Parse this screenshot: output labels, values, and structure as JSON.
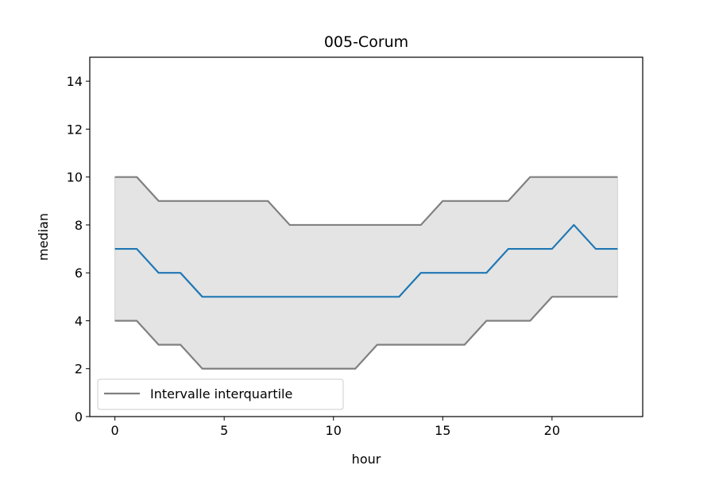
{
  "chart_data": {
    "type": "line",
    "title": "005-Corum",
    "xlabel": "hour",
    "ylabel": "median",
    "xlim": [
      -1.15,
      24.15
    ],
    "ylim": [
      0,
      15
    ],
    "xticks": [
      0,
      5,
      10,
      15,
      20
    ],
    "yticks": [
      0,
      2,
      4,
      6,
      8,
      10,
      12,
      14
    ],
    "grid": false,
    "legend_position": "lower left",
    "x": [
      0,
      1,
      2,
      3,
      4,
      5,
      6,
      7,
      8,
      9,
      10,
      11,
      12,
      13,
      14,
      15,
      16,
      17,
      18,
      19,
      20,
      21,
      22,
      23
    ],
    "series": [
      {
        "role": "median",
        "color": "#1f77b4",
        "values": [
          7,
          7,
          6,
          6,
          5,
          5,
          5,
          5,
          5,
          5,
          5,
          5,
          5,
          5,
          6,
          6,
          6,
          6,
          7,
          7,
          7,
          8,
          7,
          7
        ]
      },
      {
        "name": "Intervalle interquartile",
        "role": "q3",
        "color": "#808080",
        "values": [
          10,
          10,
          9,
          9,
          9,
          9,
          9,
          9,
          8,
          8,
          8,
          8,
          8,
          8,
          8,
          9,
          9,
          9,
          9,
          10,
          10,
          10,
          10,
          10
        ]
      },
      {
        "role": "q1",
        "color": "#808080",
        "values": [
          4,
          4,
          3,
          3,
          2,
          2,
          2,
          2,
          2,
          2,
          2,
          2,
          3,
          3,
          3,
          3,
          3,
          4,
          4,
          4,
          5,
          5,
          5,
          5
        ]
      }
    ],
    "fill_between": {
      "lower": "q1",
      "upper": "q3",
      "color": "#e4e4e4"
    },
    "legend": [
      "Intervalle interquartile"
    ]
  }
}
